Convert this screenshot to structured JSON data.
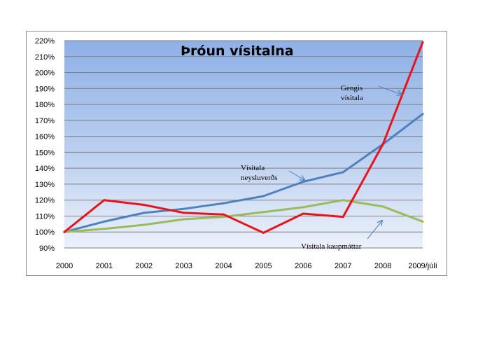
{
  "chart_data": {
    "type": "line",
    "title": "Þróun vísitalna",
    "categories": [
      "2000",
      "2001",
      "2002",
      "2003",
      "2004",
      "2005",
      "2006",
      "2007",
      "2008",
      "2009/júlí"
    ],
    "yticks": [
      "90%",
      "100%",
      "110%",
      "120%",
      "130%",
      "140%",
      "150%",
      "160%",
      "170%",
      "180%",
      "190%",
      "200%",
      "210%",
      "220%"
    ],
    "ylim": [
      90,
      220
    ],
    "grid": true,
    "series": [
      {
        "name": "Vísitala neysluverðs",
        "color": "#4f81bd",
        "values": [
          100,
          106.5,
          112,
          114.5,
          118,
          122.5,
          131.5,
          137.5,
          155,
          174
        ]
      },
      {
        "name": "Vísitala kaupmáttar",
        "color": "#9bbb59",
        "values": [
          100,
          102,
          104.5,
          108,
          109.5,
          112.5,
          115.5,
          120,
          116,
          106.5
        ]
      },
      {
        "name": "Gengis vísitala",
        "color": "#e8141c",
        "values": [
          100,
          120,
          117,
          112,
          111,
          99.5,
          111.5,
          109.5,
          155,
          219
        ]
      }
    ],
    "annotations": [
      {
        "lines": [
          "Gengis",
          "vísitala"
        ],
        "series": "Gengis vísitala"
      },
      {
        "lines": [
          "Vísitala",
          "neysluverðs"
        ],
        "series": "Vísitala neysluverðs"
      },
      {
        "lines": [
          "Vísitala kaupmáttar"
        ],
        "series": "Vísitala kaupmáttar"
      }
    ]
  }
}
